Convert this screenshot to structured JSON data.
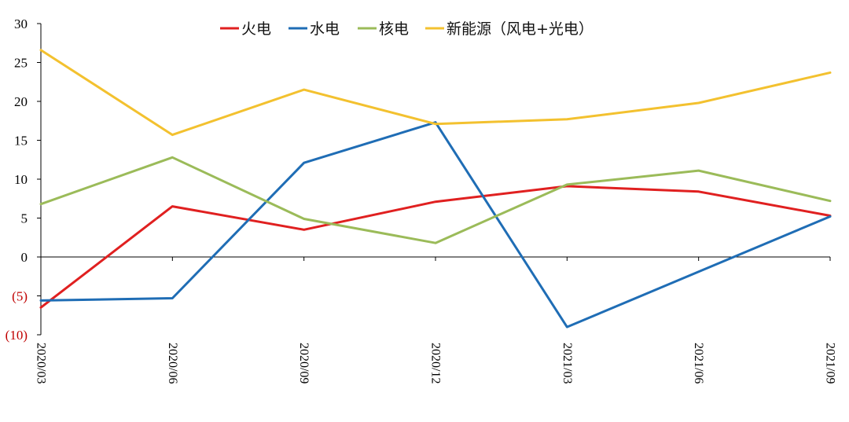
{
  "chart_data": {
    "type": "line",
    "title": "",
    "xlabel": "",
    "ylabel": "",
    "ylim": [
      -10,
      30
    ],
    "y_ticks": [
      {
        "value": 30,
        "label": "30"
      },
      {
        "value": 25,
        "label": "25"
      },
      {
        "value": 20,
        "label": "20"
      },
      {
        "value": 15,
        "label": "15"
      },
      {
        "value": 10,
        "label": "10"
      },
      {
        "value": 5,
        "label": "5"
      },
      {
        "value": 0,
        "label": "0"
      },
      {
        "value": -5,
        "label": "(5)"
      },
      {
        "value": -10,
        "label": "(10)"
      }
    ],
    "negative_tick_color": "#c00000",
    "categories": [
      "2020/03",
      "2020/06",
      "2020/09",
      "2020/12",
      "2021/03",
      "2021/06",
      "2021/09"
    ],
    "legend_position": "top-center",
    "grid": false,
    "series": [
      {
        "name": "火电",
        "color": "#e02020",
        "values": [
          -6.5,
          6.5,
          3.5,
          7.1,
          9.1,
          8.4,
          5.3
        ]
      },
      {
        "name": "水电",
        "color": "#1f6db5",
        "values": [
          -5.6,
          -5.3,
          12.1,
          17.3,
          -9.0,
          -1.9,
          5.2
        ]
      },
      {
        "name": "核电",
        "color": "#9bbb59",
        "values": [
          6.8,
          12.8,
          4.9,
          1.8,
          9.3,
          11.1,
          7.2
        ]
      },
      {
        "name": "新能源（风电+光电）",
        "color": "#f3c12f",
        "values": [
          26.6,
          15.7,
          21.5,
          17.1,
          17.7,
          19.8,
          23.7
        ]
      }
    ]
  }
}
